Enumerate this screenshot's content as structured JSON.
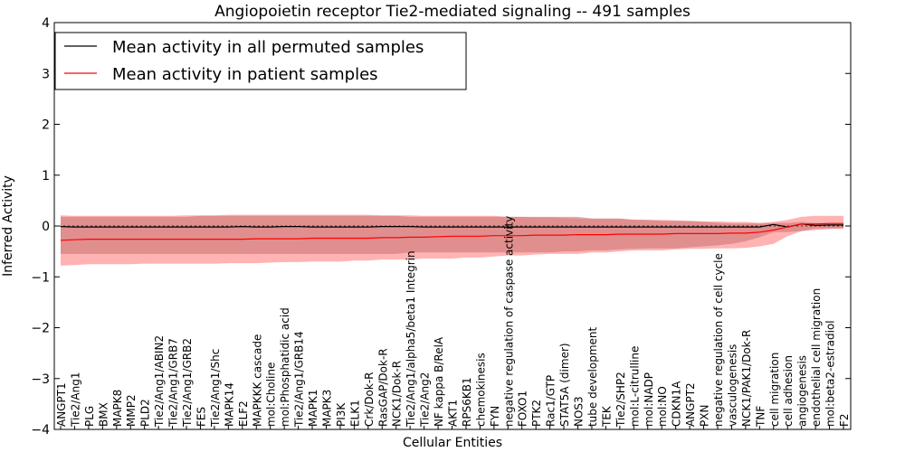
{
  "chart_data": {
    "type": "line",
    "title": "Angiopoietin receptor Tie2-mediated signaling -- 491 samples",
    "xlabel": "Cellular Entities",
    "ylabel": "Inferred Activity",
    "ylim": [
      -4,
      4
    ],
    "yticks": [
      -4,
      -3,
      -2,
      -1,
      0,
      1,
      2,
      3,
      4
    ],
    "ytick_labels": [
      "−4",
      "−3",
      "−2",
      "−1",
      "0",
      "1",
      "2",
      "3",
      "4"
    ],
    "grid": false,
    "zero_line": true,
    "legend_position": "top-left",
    "colors": {
      "permuted": "#000000",
      "patient": "#ff0000",
      "band": "#ff9999",
      "band_overlap": "#c87070"
    },
    "categories": [
      "ANGPT1",
      "Tie2/Ang1",
      "PLG",
      "BMX",
      "MAPK8",
      "MMP2",
      "PLD2",
      "Tie2/Ang1/ABIN2",
      "Tie2/Ang1/GRB7",
      "Tie2/Ang1/GRB2",
      "FES",
      "Tie2/Ang1/Shc",
      "MAPK14",
      "ELF2",
      "MAPKKK cascade",
      "mol:Choline",
      "mol:Phosphatidic acid",
      "Tie2/Ang1/GRB14",
      "MAPK1",
      "MAPK3",
      "PI3K",
      "ELK1",
      "Crk/Dok-R",
      "RasGAP/Dok-R",
      "NCK1/Dok-R",
      "Tie2/Ang1/alpha5/beta1 Integrin",
      "Tie2/Ang2",
      "NF kappa B/RelA",
      "AKT1",
      "RPS6KB1",
      "chemokinesis",
      "FYN",
      "negative regulation of caspase activity",
      "FOXO1",
      "PTK2",
      "Rac1/GTP",
      "STAT5A (dimer)",
      "NOS3",
      "tube development",
      "TEK",
      "Tie2/SHP2",
      "mol:L-citrulline",
      "mol:NADP",
      "mol:NO",
      "CDKN1A",
      "ANGPT2",
      "PXN",
      "negative regulation of cell cycle",
      "vasculogenesis",
      "NCK1/PAK1/Dok-R",
      "TNF",
      "cell migration",
      "cell adhesion",
      "angiogenesis",
      "endothelial cell migration",
      "mol:beta2-estradiol",
      "F2"
    ],
    "series": [
      {
        "name": "Mean activity in all permuted samples",
        "color": "#000000",
        "values": [
          -0.01,
          -0.02,
          -0.02,
          -0.02,
          -0.02,
          -0.02,
          -0.02,
          -0.02,
          -0.02,
          -0.02,
          -0.02,
          -0.02,
          -0.02,
          -0.01,
          -0.02,
          -0.02,
          -0.01,
          -0.01,
          -0.02,
          -0.02,
          -0.02,
          -0.02,
          -0.02,
          -0.01,
          -0.01,
          -0.01,
          -0.02,
          -0.02,
          -0.02,
          -0.02,
          -0.02,
          -0.02,
          -0.02,
          -0.02,
          -0.02,
          -0.02,
          -0.02,
          -0.02,
          -0.02,
          -0.02,
          -0.02,
          -0.02,
          -0.02,
          -0.02,
          -0.02,
          -0.02,
          -0.02,
          -0.02,
          -0.02,
          -0.02,
          -0.02,
          0.03,
          -0.02,
          0.04,
          0.01,
          0.02,
          0.02
        ],
        "band_low": [
          -0.55,
          -0.55,
          -0.55,
          -0.55,
          -0.55,
          -0.55,
          -0.55,
          -0.55,
          -0.55,
          -0.55,
          -0.55,
          -0.55,
          -0.55,
          -0.55,
          -0.55,
          -0.55,
          -0.55,
          -0.55,
          -0.55,
          -0.55,
          -0.55,
          -0.55,
          -0.55,
          -0.55,
          -0.55,
          -0.52,
          -0.52,
          -0.52,
          -0.52,
          -0.52,
          -0.52,
          -0.52,
          -0.52,
          -0.52,
          -0.52,
          -0.52,
          -0.5,
          -0.5,
          -0.48,
          -0.48,
          -0.46,
          -0.45,
          -0.44,
          -0.44,
          -0.44,
          -0.42,
          -0.4,
          -0.38,
          -0.35,
          -0.3,
          -0.22,
          -0.12,
          -0.12,
          -0.1,
          -0.05,
          -0.05,
          -0.05
        ],
        "band_high": [
          0.18,
          0.18,
          0.18,
          0.18,
          0.18,
          0.18,
          0.18,
          0.18,
          0.18,
          0.18,
          0.2,
          0.2,
          0.2,
          0.2,
          0.2,
          0.2,
          0.2,
          0.2,
          0.2,
          0.2,
          0.2,
          0.2,
          0.2,
          0.2,
          0.2,
          0.18,
          0.18,
          0.18,
          0.18,
          0.18,
          0.18,
          0.18,
          0.18,
          0.18,
          0.18,
          0.18,
          0.18,
          0.18,
          0.15,
          0.15,
          0.15,
          0.12,
          0.12,
          0.1,
          0.1,
          0.1,
          0.08,
          0.06,
          0.05,
          0.05,
          0.05,
          0.06,
          0.06,
          0.08,
          0.06,
          0.05,
          0.05
        ]
      },
      {
        "name": "Mean activity in patient samples",
        "color": "#ff0000",
        "values": [
          -0.28,
          -0.27,
          -0.26,
          -0.26,
          -0.26,
          -0.26,
          -0.26,
          -0.26,
          -0.26,
          -0.26,
          -0.26,
          -0.26,
          -0.26,
          -0.26,
          -0.25,
          -0.25,
          -0.25,
          -0.25,
          -0.24,
          -0.24,
          -0.24,
          -0.24,
          -0.24,
          -0.23,
          -0.23,
          -0.22,
          -0.22,
          -0.21,
          -0.2,
          -0.2,
          -0.2,
          -0.19,
          -0.19,
          -0.19,
          -0.18,
          -0.18,
          -0.18,
          -0.17,
          -0.17,
          -0.17,
          -0.16,
          -0.16,
          -0.16,
          -0.16,
          -0.15,
          -0.15,
          -0.15,
          -0.15,
          -0.14,
          -0.14,
          -0.12,
          -0.08,
          -0.02,
          0.04,
          0.04,
          0.05,
          0.05
        ],
        "band_low": [
          -0.78,
          -0.77,
          -0.75,
          -0.75,
          -0.75,
          -0.75,
          -0.74,
          -0.74,
          -0.74,
          -0.74,
          -0.74,
          -0.74,
          -0.73,
          -0.73,
          -0.73,
          -0.72,
          -0.71,
          -0.71,
          -0.7,
          -0.7,
          -0.7,
          -0.68,
          -0.68,
          -0.66,
          -0.66,
          -0.66,
          -0.64,
          -0.64,
          -0.64,
          -0.62,
          -0.62,
          -0.6,
          -0.58,
          -0.58,
          -0.56,
          -0.55,
          -0.55,
          -0.55,
          -0.52,
          -0.52,
          -0.5,
          -0.48,
          -0.48,
          -0.48,
          -0.46,
          -0.45,
          -0.45,
          -0.44,
          -0.44,
          -0.43,
          -0.4,
          -0.35,
          -0.2,
          -0.1,
          -0.08,
          -0.06,
          -0.05
        ],
        "band_high": [
          0.21,
          0.2,
          0.2,
          0.2,
          0.2,
          0.2,
          0.2,
          0.2,
          0.2,
          0.21,
          0.21,
          0.21,
          0.22,
          0.22,
          0.22,
          0.22,
          0.22,
          0.22,
          0.22,
          0.22,
          0.22,
          0.22,
          0.22,
          0.21,
          0.21,
          0.21,
          0.2,
          0.2,
          0.2,
          0.2,
          0.2,
          0.2,
          0.18,
          0.18,
          0.17,
          0.17,
          0.16,
          0.15,
          0.14,
          0.14,
          0.14,
          0.13,
          0.12,
          0.12,
          0.11,
          0.1,
          0.09,
          0.09,
          0.08,
          0.08,
          0.06,
          0.08,
          0.12,
          0.18,
          0.2,
          0.2,
          0.2
        ]
      }
    ]
  }
}
